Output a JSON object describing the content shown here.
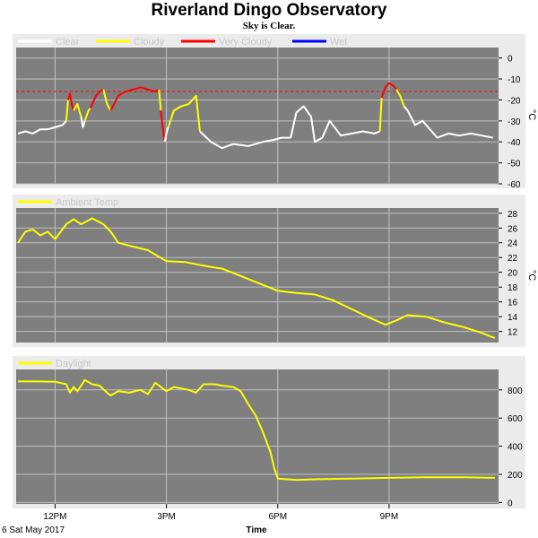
{
  "title": "Riverland Dingo Observatory",
  "subtitle": "Sky is Clear.",
  "colors": {
    "background": "#7f7f7f",
    "grid": "#c0c0c0",
    "clear": "#ffffff",
    "cloudy": "#ffff00",
    "very_cloudy": "#ff0000",
    "wet": "#0000ff",
    "threshold": "#ff0000"
  },
  "x_axis": {
    "label": "Time",
    "date_label": "6 Sat May 2017",
    "range_hours": [
      10.95,
      23.95
    ],
    "ticks": [
      {
        "h": 12,
        "label": "12PM"
      },
      {
        "h": 15,
        "label": "3PM"
      },
      {
        "h": 18,
        "label": "6PM"
      },
      {
        "h": 21,
        "label": "9PM"
      }
    ]
  },
  "chart_data": [
    {
      "type": "line",
      "name": "cloud",
      "legend": [
        {
          "label": "Clear",
          "color": "#ffffff"
        },
        {
          "label": "Cloudy",
          "color": "#ffff00"
        },
        {
          "label": "Very Cloudy",
          "color": "#ff0000"
        },
        {
          "label": "Wet",
          "color": "#0000ff"
        }
      ],
      "ylim": [
        -60,
        5
      ],
      "yticks": [
        0,
        -10,
        -20,
        -30,
        -40,
        -50,
        -60
      ],
      "unit": "°C",
      "threshold": -16,
      "segments": [
        {
          "cond": "clear",
          "x": [
            11.0,
            11.2,
            11.4,
            11.6,
            11.8,
            12.0,
            12.2,
            12.3
          ],
          "y": [
            -36,
            -35,
            -36,
            -34,
            -34,
            -33,
            -32,
            -30
          ]
        },
        {
          "cond": "cloudy",
          "x": [
            12.3,
            12.35
          ],
          "y": [
            -30,
            -20
          ]
        },
        {
          "cond": "very_cloudy",
          "x": [
            12.35,
            12.4,
            12.45,
            12.5
          ],
          "y": [
            -20,
            -17,
            -22,
            -25
          ]
        },
        {
          "cond": "cloudy",
          "x": [
            12.5,
            12.6,
            12.7
          ],
          "y": [
            -25,
            -22,
            -28
          ]
        },
        {
          "cond": "clear",
          "x": [
            12.7,
            12.75,
            12.8
          ],
          "y": [
            -28,
            -33,
            -30
          ]
        },
        {
          "cond": "cloudy",
          "x": [
            12.8,
            12.9,
            12.95
          ],
          "y": [
            -30,
            -25,
            -24
          ]
        },
        {
          "cond": "very_cloudy",
          "x": [
            12.95,
            13.1,
            13.2,
            13.3
          ],
          "y": [
            -24,
            -18,
            -16,
            -15
          ]
        },
        {
          "cond": "cloudy",
          "x": [
            13.3,
            13.4,
            13.5
          ],
          "y": [
            -15,
            -22,
            -25
          ]
        },
        {
          "cond": "very_cloudy",
          "x": [
            13.5,
            13.7,
            13.9,
            14.1,
            14.3,
            14.5,
            14.7,
            14.8
          ],
          "y": [
            -25,
            -18,
            -16,
            -15,
            -14,
            -15,
            -16,
            -15
          ]
        },
        {
          "cond": "cloudy",
          "x": [
            14.8,
            14.85
          ],
          "y": [
            -15,
            -25
          ]
        },
        {
          "cond": "very_cloudy",
          "x": [
            14.85,
            14.9,
            14.95
          ],
          "y": [
            -25,
            -33,
            -40
          ]
        },
        {
          "cond": "clear",
          "x": [
            14.95,
            15.0,
            15.05
          ],
          "y": [
            -40,
            -36,
            -33
          ]
        },
        {
          "cond": "cloudy",
          "x": [
            15.05,
            15.2,
            15.4,
            15.6,
            15.8,
            15.9
          ],
          "y": [
            -33,
            -25,
            -23,
            -22,
            -18,
            -35
          ]
        },
        {
          "cond": "clear",
          "x": [
            15.9,
            16.2,
            16.5,
            16.8,
            17.2,
            17.6,
            17.9,
            18.1,
            18.25,
            18.35
          ],
          "y": [
            -35,
            -40,
            -43,
            -41,
            -42,
            -40,
            -39,
            -38,
            -38,
            -38
          ]
        },
        {
          "cond": "clear",
          "x": [
            18.35,
            18.5,
            18.7,
            18.9,
            19.0,
            19.2,
            19.4,
            19.7,
            20.0,
            20.3,
            20.6,
            20.75
          ],
          "y": [
            -38,
            -26,
            -23,
            -28,
            -40,
            -38,
            -30,
            -37,
            -36,
            -35,
            -36,
            -35
          ]
        },
        {
          "cond": "cloudy",
          "x": [
            20.75,
            20.8
          ],
          "y": [
            -35,
            -19
          ]
        },
        {
          "cond": "very_cloudy",
          "x": [
            20.8,
            20.9,
            21.0,
            21.1,
            21.2
          ],
          "y": [
            -19,
            -14,
            -12,
            -13,
            -15
          ]
        },
        {
          "cond": "cloudy",
          "x": [
            21.2,
            21.3,
            21.4
          ],
          "y": [
            -15,
            -18,
            -23
          ]
        },
        {
          "cond": "clear",
          "x": [
            21.4,
            21.5,
            21.7,
            21.9,
            22.1,
            22.3,
            22.6,
            22.9,
            23.2,
            23.5,
            23.8
          ],
          "y": [
            -23,
            -25,
            -32,
            -30,
            -34,
            -38,
            -36,
            -37,
            -36,
            -37,
            -38
          ]
        }
      ]
    },
    {
      "type": "line",
      "name": "ambient",
      "legend": [
        {
          "label": "Ambient Temp",
          "color": "#ffff00"
        }
      ],
      "ylim": [
        10.5,
        28.7
      ],
      "yticks": [
        12,
        14,
        16,
        18,
        20,
        22,
        24,
        26,
        28
      ],
      "unit": "°C",
      "x": [
        11.0,
        11.2,
        11.4,
        11.6,
        11.8,
        12.0,
        12.3,
        12.5,
        12.7,
        13.0,
        13.3,
        13.5,
        13.7,
        14.0,
        14.5,
        15.0,
        15.5,
        16.0,
        16.5,
        17.0,
        17.5,
        18.0,
        18.5,
        19.0,
        19.5,
        20.0,
        20.5,
        20.9,
        21.2,
        21.5,
        22.0,
        22.5,
        23.0,
        23.5,
        23.85
      ],
      "y": [
        24.0,
        25.5,
        25.8,
        25.0,
        25.5,
        24.5,
        26.5,
        27.2,
        26.5,
        27.3,
        26.5,
        25.5,
        24.0,
        23.6,
        23.0,
        21.5,
        21.4,
        20.9,
        20.5,
        19.5,
        18.5,
        17.5,
        17.2,
        17.0,
        16.2,
        15.0,
        13.8,
        12.9,
        13.5,
        14.2,
        14.0,
        13.2,
        12.6,
        11.8,
        11.1
      ]
    },
    {
      "type": "line",
      "name": "daylight",
      "legend": [
        {
          "label": "Daylight",
          "color": "#ffff00"
        }
      ],
      "ylim": [
        -10,
        945
      ],
      "yticks": [
        0,
        200,
        400,
        600,
        800
      ],
      "x": [
        11.0,
        11.5,
        12.0,
        12.3,
        12.4,
        12.5,
        12.6,
        12.8,
        13.0,
        13.2,
        13.4,
        13.5,
        13.7,
        14.0,
        14.3,
        14.5,
        14.7,
        15.0,
        15.2,
        15.4,
        15.6,
        15.8,
        16.0,
        16.3,
        16.5,
        16.8,
        17.0,
        17.2,
        17.4,
        17.6,
        17.8,
        17.9,
        18.0,
        18.5,
        19.0,
        20.0,
        21.0,
        22.0,
        23.0,
        23.85
      ],
      "y": [
        860,
        860,
        858,
        840,
        780,
        820,
        790,
        870,
        840,
        830,
        780,
        760,
        790,
        780,
        800,
        770,
        850,
        790,
        820,
        810,
        800,
        780,
        840,
        840,
        830,
        820,
        790,
        700,
        620,
        500,
        360,
        250,
        170,
        160,
        165,
        170,
        175,
        180,
        180,
        175
      ]
    }
  ]
}
